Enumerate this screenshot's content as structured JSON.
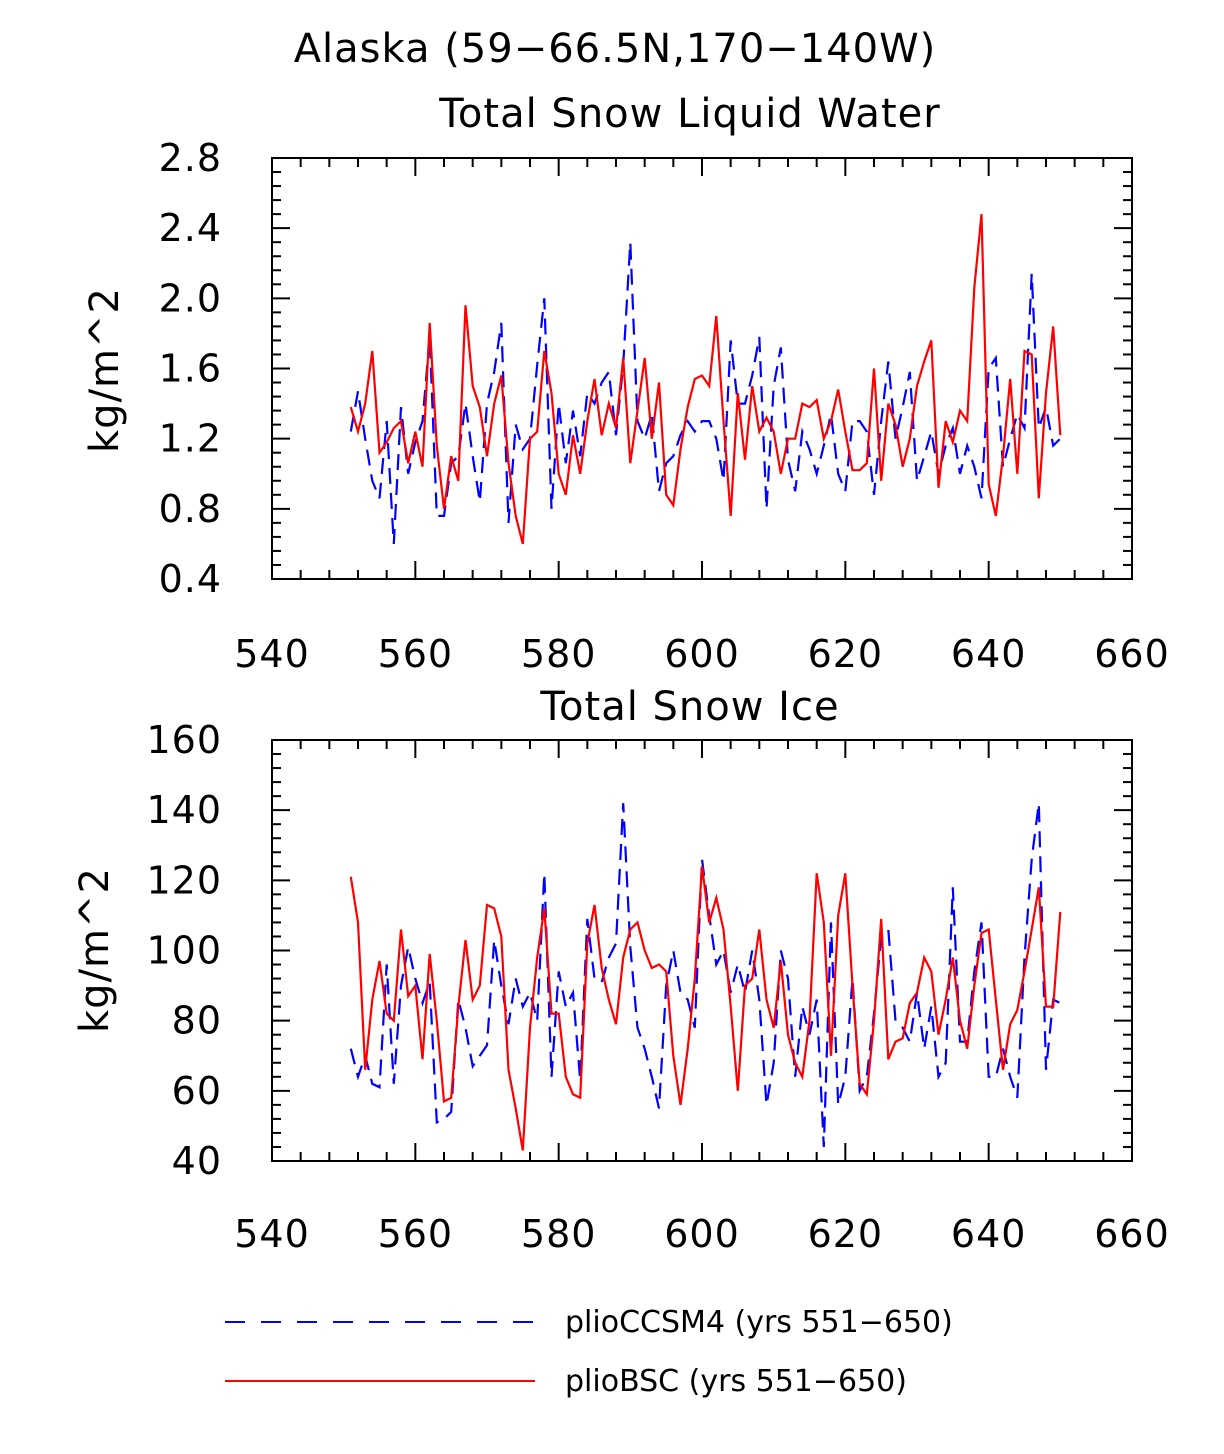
{
  "figure_title": "Alaska (59−66.5N,170−140W)",
  "colors": {
    "pliocCCSM4": "#0000ff",
    "plioBSC": "#ff0000",
    "axes": "#000000"
  },
  "legend": {
    "placement": "bottom",
    "items": [
      {
        "label": "plioCCSM4 (yrs 551−650)",
        "color": "#0000ff",
        "style": "dashed"
      },
      {
        "label": "plioBSC (yrs 551−650)",
        "color": "#ff0000",
        "style": "solid"
      }
    ]
  },
  "chart_data": [
    {
      "type": "line",
      "title": "Total Snow Liquid Water",
      "xlabel": "",
      "ylabel": "kg/m^2",
      "xlim": [
        540,
        660
      ],
      "ylim": [
        0.4,
        2.8
      ],
      "xticks": [
        540,
        560,
        580,
        600,
        620,
        640,
        660
      ],
      "yticks": [
        0.4,
        0.8,
        1.2,
        1.6,
        2.0,
        2.4,
        2.8
      ],
      "ytick_labels": [
        "0.4",
        "0.8",
        "1.2",
        "1.6",
        "2.0",
        "2.4",
        "2.8"
      ],
      "grid": false,
      "x_start": 551,
      "series": [
        {
          "name": "plioCCSM4 (yrs 551−650)",
          "color": "#0000ff",
          "style": "dashed",
          "values": [
            1.24,
            1.47,
            1.2,
            0.96,
            0.86,
            1.3,
            0.6,
            1.38,
            1.0,
            1.18,
            1.3,
            1.78,
            0.76,
            0.76,
            1.06,
            1.1,
            1.4,
            1.1,
            0.84,
            1.4,
            1.58,
            1.86,
            0.72,
            1.28,
            1.14,
            1.2,
            1.62,
            2.0,
            0.8,
            1.4,
            1.06,
            1.36,
            1.1,
            1.46,
            1.4,
            1.52,
            1.58,
            1.22,
            1.62,
            2.32,
            1.3,
            1.2,
            1.34,
            0.9,
            1.06,
            1.1,
            1.22,
            1.3,
            1.24,
            1.3,
            1.3,
            1.2,
            0.96,
            1.76,
            1.4,
            1.4,
            1.56,
            1.78,
            0.8,
            1.5,
            1.72,
            1.08,
            0.9,
            1.24,
            1.14,
            1.0,
            1.16,
            1.34,
            1.0,
            0.9,
            1.3,
            1.3,
            1.24,
            0.88,
            1.3,
            1.64,
            1.2,
            1.38,
            1.58,
            0.96,
            1.1,
            1.24,
            1.0,
            1.16,
            1.26,
            1.0,
            1.16,
            1.04,
            0.86,
            1.6,
            1.66,
            1.04,
            1.2,
            1.34,
            1.26,
            2.14,
            1.26,
            1.38,
            1.16,
            1.2
          ]
        },
        {
          "name": "plioBSC (yrs 551−650)",
          "color": "#ff0000",
          "style": "solid",
          "values": [
            1.38,
            1.24,
            1.4,
            1.7,
            1.12,
            1.18,
            1.26,
            1.3,
            1.06,
            1.24,
            1.04,
            1.86,
            1.16,
            0.8,
            1.1,
            0.96,
            1.96,
            1.5,
            1.38,
            1.1,
            1.4,
            1.56,
            1.06,
            0.76,
            0.6,
            1.2,
            1.24,
            1.7,
            1.46,
            1.0,
            0.88,
            1.22,
            1.0,
            1.3,
            1.54,
            1.22,
            1.4,
            1.26,
            1.66,
            1.06,
            1.36,
            1.66,
            1.2,
            1.52,
            0.88,
            0.82,
            1.14,
            1.38,
            1.54,
            1.56,
            1.5,
            1.9,
            1.3,
            0.76,
            1.46,
            1.08,
            1.5,
            1.24,
            1.32,
            1.24,
            1.0,
            1.2,
            1.2,
            1.4,
            1.38,
            1.42,
            1.2,
            1.3,
            1.48,
            1.24,
            1.02,
            1.02,
            1.06,
            1.6,
            0.96,
            1.4,
            1.28,
            1.04,
            1.2,
            1.5,
            1.64,
            1.76,
            0.92,
            1.3,
            1.18,
            1.36,
            1.3,
            2.06,
            2.48,
            0.94,
            0.76,
            1.1,
            1.54,
            1.0,
            1.7,
            1.68,
            0.86,
            1.46,
            1.84,
            1.22
          ]
        }
      ]
    },
    {
      "type": "line",
      "title": "Total Snow Ice",
      "xlabel": "",
      "ylabel": "kg/m^2",
      "xlim": [
        540,
        660
      ],
      "ylim": [
        40,
        160
      ],
      "xticks": [
        540,
        560,
        580,
        600,
        620,
        640,
        660
      ],
      "yticks": [
        40,
        60,
        80,
        100,
        120,
        140,
        160
      ],
      "ytick_labels": [
        "40",
        "60",
        "80",
        "100",
        "120",
        "140",
        "160"
      ],
      "grid": false,
      "x_start": 551,
      "series": [
        {
          "name": "plioCCSM4 (yrs 551−650)",
          "color": "#0000ff",
          "style": "dashed",
          "values": [
            72,
            64,
            70,
            62,
            61,
            96,
            62,
            90,
            101,
            92,
            85,
            91,
            51,
            52,
            54,
            86,
            78,
            67,
            70,
            73,
            103,
            90,
            79,
            92,
            84,
            88,
            80,
            122,
            64,
            94,
            84,
            88,
            63,
            109,
            92,
            91,
            98,
            102,
            142,
            101,
            78,
            72,
            64,
            55,
            90,
            100,
            88,
            86,
            78,
            126,
            110,
            96,
            100,
            88,
            96,
            88,
            100,
            86,
            56,
            68,
            100,
            92,
            64,
            84,
            76,
            86,
            44,
            108,
            56,
            64,
            92,
            60,
            64,
            82,
            104,
            106,
            80,
            78,
            74,
            88,
            72,
            84,
            64,
            68,
            118,
            74,
            74,
            94,
            108,
            64,
            64,
            72,
            64,
            58,
            98,
            126,
            142,
            66,
            86,
            85
          ]
        },
        {
          "name": "plioBSC (yrs 551−650)",
          "color": "#ff0000",
          "style": "solid",
          "values": [
            121,
            108,
            66,
            86,
            97,
            82,
            80,
            106,
            87,
            90,
            69,
            99,
            80,
            57,
            58,
            84,
            103,
            86,
            90,
            113,
            112,
            104,
            66,
            55,
            43,
            78,
            98,
            112,
            82,
            82,
            64,
            59,
            58,
            102,
            113,
            95,
            86,
            79,
            98,
            106,
            108,
            100,
            95,
            96,
            94,
            70,
            56,
            72,
            92,
            124,
            108,
            115,
            106,
            84,
            60,
            90,
            92,
            106,
            86,
            78,
            97,
            76,
            68,
            64,
            80,
            122,
            108,
            70,
            110,
            122,
            90,
            62,
            59,
            80,
            109,
            69,
            74,
            75,
            85,
            88,
            98,
            94,
            76,
            86,
            98,
            80,
            72,
            90,
            105,
            106,
            86,
            66,
            79,
            83,
            94,
            106,
            118,
            84,
            84,
            111
          ]
        }
      ]
    }
  ]
}
